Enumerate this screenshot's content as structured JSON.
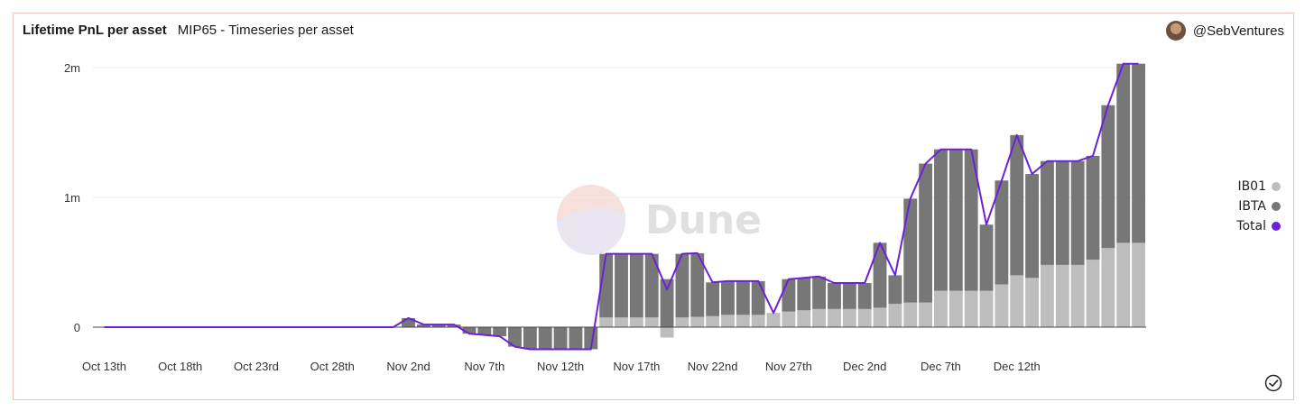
{
  "header": {
    "title": "Lifetime PnL per asset",
    "subtitle": "MIP65 - Timeseries per asset",
    "author": "@SebVentures"
  },
  "watermark": "Dune",
  "colors": {
    "ib01": "#bdbdbd",
    "ibta": "#777777",
    "total": "#6a22d8",
    "grid": "#ebebeb",
    "axis_text": "#333333"
  },
  "chart_data": {
    "type": "bar",
    "stacked": true,
    "x_tick_labels": [
      "Oct 13th",
      "Oct 18th",
      "Oct 23rd",
      "Oct 28th",
      "Nov 2nd",
      "Nov 7th",
      "Nov 12th",
      "Nov 17th",
      "Nov 22nd",
      "Nov 27th",
      "Dec 2nd",
      "Dec 7th",
      "Dec 12th"
    ],
    "y_ticks": [
      {
        "value": 0,
        "label": "0"
      },
      {
        "value": 1000000,
        "label": "1m"
      },
      {
        "value": 2000000,
        "label": "2m"
      }
    ],
    "ylim": [
      -200000,
      2000000
    ],
    "x_start": "Oct 13th",
    "series": [
      {
        "name": "IB01",
        "values": [
          0,
          0,
          0,
          0,
          0,
          0,
          0,
          0,
          0,
          0,
          0,
          0,
          0,
          0,
          0,
          0,
          0,
          0,
          0,
          0,
          0,
          0,
          0,
          0,
          0,
          0,
          0,
          0,
          0,
          0,
          0,
          0,
          0,
          75000,
          75000,
          75000,
          75000,
          -80000,
          75000,
          80000,
          85000,
          95000,
          95000,
          95000,
          110000,
          120000,
          130000,
          140000,
          140000,
          140000,
          140000,
          150000,
          180000,
          190000,
          190000,
          280000,
          280000,
          280000,
          280000,
          330000,
          400000,
          380000,
          480000,
          480000,
          480000,
          520000,
          610000,
          650000,
          650000
        ]
      },
      {
        "name": "IBTA",
        "values": [
          0,
          0,
          0,
          0,
          0,
          0,
          0,
          0,
          0,
          0,
          0,
          0,
          0,
          0,
          0,
          0,
          0,
          0,
          0,
          0,
          70000,
          20000,
          20000,
          20000,
          -50000,
          -60000,
          -70000,
          -150000,
          -170000,
          -170000,
          -170000,
          -170000,
          -170000,
          490000,
          490000,
          490000,
          490000,
          370000,
          490000,
          490000,
          260000,
          260000,
          260000,
          260000,
          0,
          250000,
          250000,
          250000,
          200000,
          200000,
          200000,
          500000,
          220000,
          800000,
          1070000,
          1090000,
          1090000,
          1090000,
          510000,
          800000,
          1080000,
          800000,
          800000,
          800000,
          800000,
          800000,
          1100000,
          1380000,
          1380000
        ]
      },
      {
        "name": "Total",
        "type": "line",
        "values": [
          0,
          0,
          0,
          0,
          0,
          0,
          0,
          0,
          0,
          0,
          0,
          0,
          0,
          0,
          0,
          0,
          0,
          0,
          0,
          0,
          70000,
          20000,
          20000,
          20000,
          -50000,
          -60000,
          -70000,
          -150000,
          -170000,
          -170000,
          -170000,
          -170000,
          -170000,
          565000,
          565000,
          565000,
          565000,
          290000,
          565000,
          570000,
          345000,
          355000,
          355000,
          355000,
          110000,
          370000,
          380000,
          390000,
          340000,
          340000,
          340000,
          650000,
          400000,
          990000,
          1260000,
          1370000,
          1370000,
          1370000,
          790000,
          1130000,
          1480000,
          1180000,
          1280000,
          1280000,
          1280000,
          1320000,
          1710000,
          2030000,
          2030000
        ]
      }
    ],
    "legend": [
      "IB01",
      "IBTA",
      "Total"
    ],
    "legend_position": "right",
    "grid": true
  }
}
